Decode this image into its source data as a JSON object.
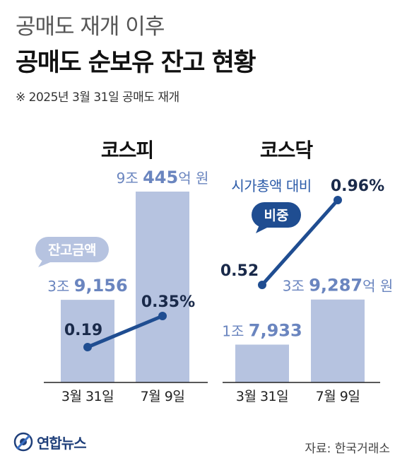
{
  "header": {
    "subtitle": "공매도 재개 이후",
    "title": "공매도 순보유 잔고 현황",
    "note": "※ 2025년 3월 31일 공매도 재개"
  },
  "legend": {
    "amount_label": "잔고금액",
    "ratio_label_line1": "시가총액 대비",
    "ratio_label_line2": "비중"
  },
  "footer": {
    "logo_text": "연합뉴스",
    "source": "자료: 한국거래소"
  },
  "colors": {
    "bar": "#b6c3e0",
    "bar_label": "#6a85bf",
    "line": "#1f4d91",
    "dark_text": "#1a2a4a",
    "bubble_light": "#b6c3e0",
    "bubble_dark": "#1f4d91"
  },
  "chart_data": [
    {
      "type": "bar",
      "title": "코스피",
      "categories": [
        "3월 31일",
        "7월 9일"
      ],
      "series": [
        {
          "name": "잔고금액",
          "unit": "억 원",
          "values": [
            39156,
            90445
          ],
          "labels": [
            [
              "3조 ",
              "9,156",
              ""
            ],
            [
              "9조 ",
              "445",
              "억 원"
            ]
          ]
        },
        {
          "name": "시가총액 대비 비중",
          "unit": "%",
          "values": [
            0.19,
            0.35
          ],
          "labels": [
            "0.19",
            "0.35%"
          ]
        }
      ]
    },
    {
      "type": "bar",
      "title": "코스닥",
      "categories": [
        "3월 31일",
        "7월 9일"
      ],
      "series": [
        {
          "name": "잔고금액",
          "unit": "억 원",
          "values": [
            17933,
            39287
          ],
          "labels": [
            [
              "1조 ",
              "7,933",
              ""
            ],
            [
              "3조 ",
              "9,287",
              "억 원"
            ]
          ]
        },
        {
          "name": "시가총액 대비 비중",
          "unit": "%",
          "values": [
            0.52,
            0.96
          ],
          "labels": [
            "0.52",
            "0.96%"
          ]
        }
      ]
    }
  ]
}
